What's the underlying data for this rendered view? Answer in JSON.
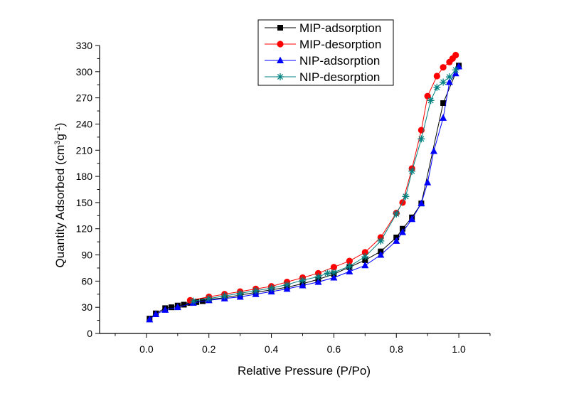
{
  "chart_data": {
    "type": "line",
    "title": "",
    "xlabel": "Relative Pressure (P/Po)",
    "ylabel": {
      "prefix": "Quantity Adsorbed (cm",
      "sup1": "3",
      "mid": "g",
      "sup2": "-1",
      "suffix": ")"
    },
    "xlim": [
      -0.15,
      1.1
    ],
    "ylim": [
      0,
      330
    ],
    "xticks": [
      {
        "value": 0.0,
        "label": "0.0"
      },
      {
        "value": 0.2,
        "label": "0.2"
      },
      {
        "value": 0.4,
        "label": "0.4"
      },
      {
        "value": 0.6,
        "label": "0.6"
      },
      {
        "value": 0.8,
        "label": "0.8"
      },
      {
        "value": 1.0,
        "label": "1.0"
      }
    ],
    "yticks": [
      {
        "value": 0,
        "label": "0"
      },
      {
        "value": 30,
        "label": "30"
      },
      {
        "value": 60,
        "label": "60"
      },
      {
        "value": 90,
        "label": "90"
      },
      {
        "value": 120,
        "label": "120"
      },
      {
        "value": 150,
        "label": "150"
      },
      {
        "value": 180,
        "label": "180"
      },
      {
        "value": 210,
        "label": "210"
      },
      {
        "value": 240,
        "label": "240"
      },
      {
        "value": 270,
        "label": "270"
      },
      {
        "value": 300,
        "label": "300"
      },
      {
        "value": 330,
        "label": "330"
      }
    ],
    "grid": false,
    "legend_position": "top-center",
    "series": [
      {
        "name": "MIP-adsorption",
        "color": "#000000",
        "marker": "square",
        "x": [
          0.01,
          0.03,
          0.06,
          0.08,
          0.1,
          0.12,
          0.14,
          0.16,
          0.18,
          0.2,
          0.25,
          0.3,
          0.35,
          0.4,
          0.45,
          0.5,
          0.55,
          0.6,
          0.65,
          0.7,
          0.75,
          0.8,
          0.82,
          0.85,
          0.88,
          0.95,
          1.0
        ],
        "y": [
          17,
          23,
          29,
          30,
          32,
          33,
          35,
          36,
          37,
          39,
          41,
          44,
          47,
          50,
          53,
          57,
          62,
          68,
          76,
          84,
          94,
          110,
          120,
          133,
          149,
          264,
          307
        ]
      },
      {
        "name": "MIP-desorption",
        "color": "#ff0000",
        "marker": "circle",
        "x": [
          0.99,
          0.98,
          0.97,
          0.95,
          0.93,
          0.9,
          0.88,
          0.85,
          0.82,
          0.8,
          0.75,
          0.7,
          0.65,
          0.6,
          0.55,
          0.5,
          0.45,
          0.4,
          0.35,
          0.3,
          0.25,
          0.2,
          0.14
        ],
        "y": [
          319,
          315,
          311,
          305,
          295,
          272,
          233,
          189,
          150,
          138,
          110,
          93,
          83,
          76,
          69,
          64,
          59,
          54,
          51,
          48,
          45,
          42,
          38
        ]
      },
      {
        "name": "NIP-adsorption",
        "color": "#0000ff",
        "marker": "triangle",
        "x": [
          0.01,
          0.03,
          0.06,
          0.1,
          0.15,
          0.2,
          0.25,
          0.3,
          0.35,
          0.4,
          0.45,
          0.5,
          0.55,
          0.6,
          0.65,
          0.7,
          0.75,
          0.8,
          0.82,
          0.85,
          0.88,
          0.9,
          0.92,
          0.95,
          0.97,
          0.99,
          1.0
        ],
        "y": [
          16,
          22,
          27,
          30,
          35,
          38,
          40,
          42,
          45,
          48,
          51,
          55,
          59,
          64,
          71,
          78,
          90,
          106,
          116,
          131,
          149,
          173,
          209,
          247,
          288,
          298,
          306
        ]
      },
      {
        "name": "NIP-desorption",
        "color": "#008080",
        "marker": "star",
        "x": [
          0.99,
          0.97,
          0.95,
          0.93,
          0.91,
          0.88,
          0.85,
          0.83,
          0.8,
          0.75,
          0.7,
          0.65,
          0.6,
          0.58,
          0.55,
          0.5,
          0.45,
          0.4,
          0.35,
          0.3,
          0.25,
          0.2,
          0.15
        ],
        "y": [
          302,
          294,
          288,
          282,
          267,
          223,
          186,
          157,
          137,
          106,
          88,
          77,
          70,
          69,
          65,
          61,
          56,
          52,
          49,
          46,
          43,
          40,
          37
        ]
      }
    ]
  }
}
